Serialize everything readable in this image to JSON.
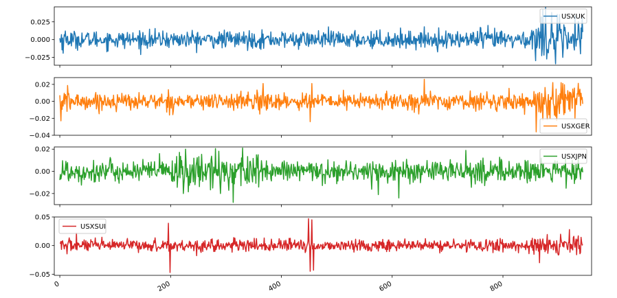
{
  "chart_data": {
    "type": "line",
    "layout": "4 stacked subplots, shared x axis",
    "grid": false,
    "x_range": [
      -10,
      960
    ],
    "x_ticks": [
      0,
      200,
      400,
      600,
      800
    ],
    "x_tick_labels": [
      "0",
      "200",
      "400",
      "600",
      "800"
    ],
    "x_tick_rotation": 30,
    "n_points": 945,
    "panels": [
      {
        "series": {
          "name": "USXUK",
          "color": "#1f77b4"
        },
        "ylim": [
          -0.036,
          0.046
        ],
        "y_ticks": [
          -0.025,
          0,
          0.025
        ],
        "y_tick_labels": [
          "−0.025",
          "0.000",
          "0.025"
        ],
        "legend_loc": "upper right",
        "data": {
          "base_amplitude": 0.008,
          "volatility_windows": [
            [
              0,
              15,
              1.5
            ],
            [
              750,
              800,
              1.3
            ],
            [
              850,
              945,
              2.2
            ]
          ],
          "spikes": [
            [
              872,
              0.042
            ],
            [
              877,
              0.045
            ],
            [
              895,
              -0.034
            ],
            [
              888,
              0.038
            ],
            [
              902,
              0.035
            ],
            [
              908,
              -0.025
            ],
            [
              940,
              -0.02
            ],
            [
              943,
              0.03
            ]
          ]
        }
      },
      {
        "series": {
          "name": "USXGER",
          "color": "#ff7f0e"
        },
        "ylim": [
          -0.04,
          0.028
        ],
        "y_ticks": [
          -0.04,
          -0.02,
          0,
          0.02
        ],
        "y_tick_labels": [
          "−0.04",
          "−0.02",
          "0.00",
          "0.02"
        ],
        "legend_loc": "lower right",
        "data": {
          "base_amplitude": 0.0065,
          "volatility_windows": [
            [
              0,
              20,
              1.5
            ],
            [
              350,
              380,
              1.6
            ],
            [
              860,
              945,
              2.2
            ]
          ],
          "spikes": [
            [
              2,
              -0.023
            ],
            [
              452,
              -0.024
            ],
            [
              455,
              0.021
            ],
            [
              658,
              0.026
            ],
            [
              860,
              -0.036
            ],
            [
              872,
              -0.022
            ],
            [
              905,
              0.022
            ],
            [
              930,
              -0.02
            ]
          ]
        }
      },
      {
        "series": {
          "name": "USXJPN",
          "color": "#2ca02c"
        },
        "ylim": [
          -0.03,
          0.022
        ],
        "y_ticks": [
          -0.02,
          0,
          0.02
        ],
        "y_tick_labels": [
          "−0.02",
          "0.00",
          "0.02"
        ],
        "legend_loc": "upper right",
        "data": {
          "base_amplitude": 0.0065,
          "volatility_windows": [
            [
              0,
              40,
              1.4
            ],
            [
              200,
              360,
              1.6
            ],
            [
              700,
              800,
              1.2
            ],
            [
              850,
              945,
              1.2
            ]
          ],
          "spikes": [
            [
              227,
              0.02
            ],
            [
              223,
              -0.02
            ],
            [
              313,
              -0.028
            ],
            [
              330,
              0.021
            ],
            [
              290,
              -0.02
            ],
            [
              180,
              0.016
            ],
            [
              612,
              -0.024
            ],
            [
              575,
              -0.021
            ]
          ]
        }
      },
      {
        "series": {
          "name": "USXSUI",
          "color": "#d62728"
        },
        "ylim": [
          -0.052,
          0.05
        ],
        "y_ticks": [
          -0.05,
          0,
          0.05
        ],
        "y_tick_labels": [
          "−0.05",
          "0.00",
          "0.05"
        ],
        "legend_loc": "upper left",
        "data": {
          "base_amplitude": 0.007,
          "volatility_windows": [
            [
              0,
              20,
              1.5
            ],
            [
              850,
              945,
              1.6
            ]
          ],
          "spikes": [
            [
              196,
              0.039
            ],
            [
              199,
              -0.047
            ],
            [
              449,
              0.047
            ],
            [
              452,
              -0.045
            ],
            [
              455,
              0.045
            ],
            [
              458,
              -0.043
            ],
            [
              30,
              0.022
            ],
            [
              920,
              0.028
            ],
            [
              866,
              -0.03
            ]
          ]
        }
      }
    ]
  }
}
